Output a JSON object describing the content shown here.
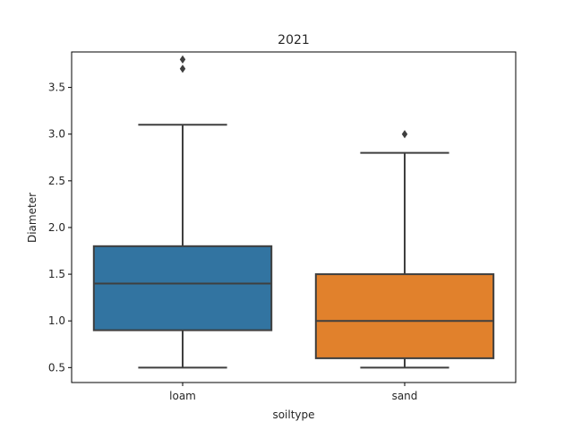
{
  "chart_data": {
    "type": "box",
    "title": "2021",
    "xlabel": "soiltype",
    "ylabel": "Diameter",
    "ylim": [
      0.34,
      3.88
    ],
    "yticks": [
      0.5,
      1.0,
      1.5,
      2.0,
      2.5,
      3.0,
      3.5
    ],
    "ytick_labels": [
      "0.5",
      "1.0",
      "1.5",
      "2.0",
      "2.5",
      "3.0",
      "3.5"
    ],
    "grid": false,
    "categories": [
      "loam",
      "sand"
    ],
    "boxes": [
      {
        "category": "loam",
        "color": "#3274a1",
        "whisker_low": 0.5,
        "q1": 0.9,
        "median": 1.4,
        "q3": 1.8,
        "whisker_high": 3.1,
        "outliers": [
          3.7,
          3.8
        ]
      },
      {
        "category": "sand",
        "color": "#e1812c",
        "whisker_low": 0.5,
        "q1": 0.6,
        "median": 1.0,
        "q3": 1.5,
        "whisker_high": 2.8,
        "outliers": [
          3.0
        ]
      }
    ]
  }
}
